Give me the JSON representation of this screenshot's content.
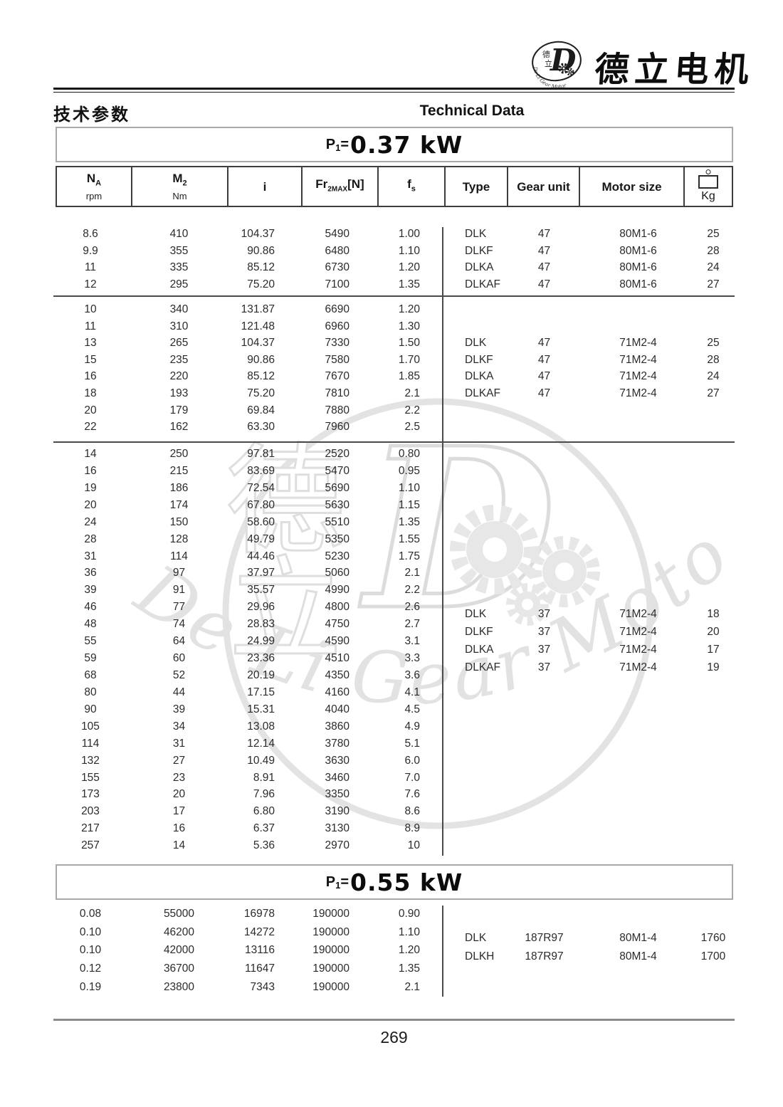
{
  "brand": {
    "name": "德立电机",
    "logo": {
      "monogram": "D",
      "stack_top": "德",
      "stack_bottom": "立",
      "arc_text": "De Li Gear Motor"
    }
  },
  "page_titles": {
    "cn": "技术参数",
    "en": "Technical Data"
  },
  "watermark": {
    "char_top": "德",
    "char_bottom": "立",
    "monogram": "D",
    "arc_text": "De Li Gear Motor"
  },
  "table_header": {
    "na_main": "N",
    "na_sub": "A",
    "na_unit": "rpm",
    "m2_main": "M",
    "m2_sub": "2",
    "m2_unit": "Nm",
    "i_label": "i",
    "fr_pre": "Fr",
    "fr_sub": "2MAX",
    "fr_post": "[N]",
    "fs_main": "f",
    "fs_sub": "s",
    "type_label": "Type",
    "gear_unit_label": "Gear unit",
    "motor_size_label": "Motor size",
    "kg_label": "Kg"
  },
  "power_sections": [
    {
      "title_p": "P",
      "title_sub": "1",
      "title_eq": "=",
      "title_value": "0.37 kW",
      "blocks": [
        {
          "rows": [
            [
              "8.6",
              "410",
              "104.37",
              "5490",
              "1.00"
            ],
            [
              "9.9",
              "355",
              "90.86",
              "6480",
              "1.10"
            ],
            [
              "11",
              "335",
              "85.12",
              "6730",
              "1.20"
            ],
            [
              "12",
              "295",
              "75.20",
              "7100",
              "1.35"
            ]
          ],
          "types": [
            [
              "DLK",
              "47",
              "80M1-6",
              "25"
            ],
            [
              "DLKF",
              "47",
              "80M1-6",
              "28"
            ],
            [
              "DLKA",
              "47",
              "80M1-6",
              "24"
            ],
            [
              "DLKAF",
              "47",
              "80M1-6",
              "27"
            ]
          ]
        },
        {
          "rows": [
            [
              "10",
              "340",
              "131.87",
              "6690",
              "1.20"
            ],
            [
              "11",
              "310",
              "121.48",
              "6960",
              "1.30"
            ],
            [
              "13",
              "265",
              "104.37",
              "7330",
              "1.50"
            ],
            [
              "15",
              "235",
              "90.86",
              "7580",
              "1.70"
            ],
            [
              "16",
              "220",
              "85.12",
              "7670",
              "1.85"
            ],
            [
              "18",
              "193",
              "75.20",
              "7810",
              "2.1"
            ],
            [
              "20",
              "179",
              "69.84",
              "7880",
              "2.2"
            ],
            [
              "22",
              "162",
              "63.30",
              "7960",
              "2.5"
            ]
          ],
          "types": [
            [
              "DLK",
              "47",
              "71M2-4",
              "25"
            ],
            [
              "DLKF",
              "47",
              "71M2-4",
              "28"
            ],
            [
              "DLKA",
              "47",
              "71M2-4",
              "24"
            ],
            [
              "DLKAF",
              "47",
              "71M2-4",
              "27"
            ]
          ]
        },
        {
          "rows": [
            [
              "14",
              "250",
              "97.81",
              "2520",
              "0.80"
            ],
            [
              "16",
              "215",
              "83.69",
              "5470",
              "0.95"
            ],
            [
              "19",
              "186",
              "72.54",
              "5690",
              "1.10"
            ],
            [
              "20",
              "174",
              "67.80",
              "5630",
              "1.15"
            ],
            [
              "24",
              "150",
              "58.60",
              "5510",
              "1.35"
            ],
            [
              "28",
              "128",
              "49.79",
              "5350",
              "1.55"
            ],
            [
              "31",
              "114",
              "44.46",
              "5230",
              "1.75"
            ],
            [
              "36",
              "97",
              "37.97",
              "5060",
              "2.1"
            ],
            [
              "39",
              "91",
              "35.57",
              "4990",
              "2.2"
            ],
            [
              "46",
              "77",
              "29.96",
              "4800",
              "2.6"
            ],
            [
              "48",
              "74",
              "28.83",
              "4750",
              "2.7"
            ],
            [
              "55",
              "64",
              "24.99",
              "4590",
              "3.1"
            ],
            [
              "59",
              "60",
              "23.36",
              "4510",
              "3.3"
            ],
            [
              "68",
              "52",
              "20.19",
              "4350",
              "3.6"
            ],
            [
              "80",
              "44",
              "17.15",
              "4160",
              "4.1"
            ],
            [
              "90",
              "39",
              "15.31",
              "4040",
              "4.5"
            ],
            [
              "105",
              "34",
              "13.08",
              "3860",
              "4.9"
            ],
            [
              "114",
              "31",
              "12.14",
              "3780",
              "5.1"
            ],
            [
              "132",
              "27",
              "10.49",
              "3630",
              "6.0"
            ],
            [
              "155",
              "23",
              "8.91",
              "3460",
              "7.0"
            ],
            [
              "173",
              "20",
              "7.96",
              "3350",
              "7.6"
            ],
            [
              "203",
              "17",
              "6.80",
              "3190",
              "8.6"
            ],
            [
              "217",
              "16",
              "6.37",
              "3130",
              "8.9"
            ],
            [
              "257",
              "14",
              "5.36",
              "2970",
              "10"
            ]
          ],
          "types": [
            [
              "DLK",
              "37",
              "71M2-4",
              "18"
            ],
            [
              "DLKF",
              "37",
              "71M2-4",
              "20"
            ],
            [
              "DLKA",
              "37",
              "71M2-4",
              "17"
            ],
            [
              "DLKAF",
              "37",
              "71M2-4",
              "19"
            ]
          ]
        }
      ]
    },
    {
      "title_p": "P",
      "title_sub": "1",
      "title_eq": "=",
      "title_value": "0.55 kW",
      "blocks": [
        {
          "rows": [
            [
              "0.08",
              "55000",
              "16978",
              "190000",
              "0.90"
            ],
            [
              "0.10",
              "46200",
              "14272",
              "190000",
              "1.10"
            ],
            [
              "0.10",
              "42000",
              "13116",
              "190000",
              "1.20"
            ],
            [
              "0.12",
              "36700",
              "11647",
              "190000",
              "1.35"
            ],
            [
              "0.19",
              "23800",
              "7343",
              "190000",
              "2.1"
            ]
          ],
          "types": [
            [
              "DLK",
              "187R97",
              "80M1-4",
              "1760"
            ],
            [
              "DLKH",
              "187R97",
              "80M1-4",
              "1700"
            ]
          ]
        }
      ]
    }
  ],
  "footer": {
    "page_number": "269"
  }
}
